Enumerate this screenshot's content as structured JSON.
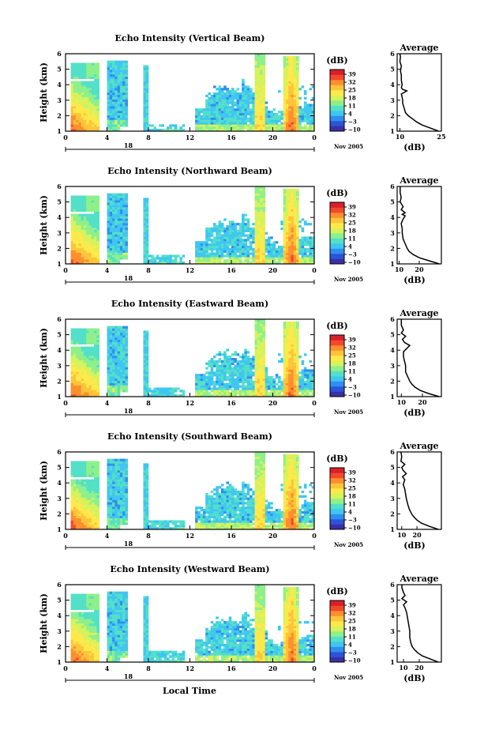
{
  "figure": {
    "x_axis_label": "Local Time",
    "date_label": "Nov 2005",
    "day_label": "18",
    "time_ticks": [
      "0",
      "4",
      "8",
      "12",
      "16",
      "20",
      "0"
    ],
    "height_ticks": [
      "1",
      "2",
      "3",
      "4",
      "5",
      "6"
    ],
    "y_axis_label": "Height (km)",
    "colorbar_unit": "(dB)",
    "colorbar_ticks": [
      "39",
      "32",
      "25",
      "18",
      "11",
      "4",
      "−3",
      "−10"
    ],
    "average_title": "Average",
    "average_xlabel": "(dB)",
    "colormap": [
      "#3b2fa6",
      "#2b54d8",
      "#2f8ff0",
      "#3fc6f2",
      "#53e0c8",
      "#8ef08a",
      "#d6f25c",
      "#ffe94a",
      "#ffc43a",
      "#ff8f2e",
      "#f4482c",
      "#d8202a"
    ]
  },
  "chart_data": [
    {
      "type": "heatmap",
      "title": "Echo Intensity (Vertical Beam)",
      "xlabel": "",
      "ylabel": "Height (km)",
      "xlim": [
        0,
        24
      ],
      "ylim": [
        1,
        6
      ],
      "clim": [
        -10,
        39
      ],
      "avg_profile": {
        "xlim": [
          9,
          25
        ],
        "xticks": [
          "10",
          "25"
        ],
        "height": [
          1.0,
          1.2,
          1.4,
          1.6,
          1.8,
          2.0,
          2.2,
          2.5,
          2.8,
          3.0,
          3.2,
          3.4,
          3.5,
          3.6,
          3.7,
          3.8,
          4.0,
          4.3,
          4.6,
          4.9,
          5.2,
          5.5,
          5.8,
          6.0
        ],
        "value": [
          24,
          21,
          18,
          16,
          14.5,
          13,
          12,
          11.5,
          11,
          11,
          10.8,
          10.5,
          11.5,
          12.5,
          11,
          10.5,
          10.8,
          10.5,
          10.5,
          10.2,
          10.5,
          10,
          10.2,
          10
        ]
      }
    },
    {
      "type": "heatmap",
      "title": "Echo Intensity (Northward Beam)",
      "xlabel": "",
      "ylabel": "Height (km)",
      "xlim": [
        0,
        24
      ],
      "ylim": [
        1,
        6
      ],
      "clim": [
        -10,
        39
      ],
      "avg_profile": {
        "xlim": [
          9,
          31
        ],
        "xticks": [
          "10",
          "20"
        ],
        "height": [
          1.0,
          1.2,
          1.4,
          1.6,
          1.8,
          2.0,
          2.3,
          2.6,
          3.0,
          3.3,
          3.6,
          3.9,
          4.1,
          4.2,
          4.3,
          4.5,
          4.7,
          5.0,
          5.3,
          5.6,
          6.0
        ],
        "value": [
          30,
          25,
          20,
          17,
          15,
          14,
          13,
          12,
          11.5,
          11.5,
          11,
          12,
          13,
          11.5,
          13,
          11,
          12,
          10.5,
          11,
          10.5,
          10.5
        ]
      }
    },
    {
      "type": "heatmap",
      "title": "Echo Intensity (Eastward Beam)",
      "xlabel": "",
      "ylabel": "Height (km)",
      "xlim": [
        0,
        24
      ],
      "ylim": [
        1,
        6
      ],
      "clim": [
        -10,
        39
      ],
      "avg_profile": {
        "xlim": [
          8,
          29
        ],
        "xticks": [
          "10",
          "20"
        ],
        "height": [
          1.0,
          1.2,
          1.4,
          1.6,
          1.8,
          2.0,
          2.3,
          2.6,
          3.0,
          3.3,
          3.6,
          3.9,
          4.1,
          4.3,
          4.5,
          4.7,
          4.9,
          5.1,
          5.3,
          5.6,
          6.0
        ],
        "value": [
          28,
          23,
          19,
          16.5,
          15,
          14,
          13,
          12,
          12,
          11.5,
          11,
          11,
          12.5,
          14,
          11.5,
          10.5,
          12,
          10,
          11,
          10,
          10
        ]
      }
    },
    {
      "type": "heatmap",
      "title": "Echo Intensity (Southward Beam)",
      "xlabel": "",
      "ylabel": "Height (km)",
      "xlim": [
        0,
        24
      ],
      "ylim": [
        1,
        6
      ],
      "clim": [
        -10,
        39
      ],
      "avg_profile": {
        "xlim": [
          7,
          36
        ],
        "xticks": [
          "10",
          "20"
        ],
        "height": [
          1.0,
          1.2,
          1.4,
          1.6,
          1.8,
          2.0,
          2.3,
          2.6,
          3.0,
          3.3,
          3.6,
          3.9,
          4.2,
          4.4,
          4.6,
          4.8,
          5.0,
          5.2,
          5.4,
          5.7,
          6.0
        ],
        "value": [
          34,
          28,
          23,
          20,
          18,
          16.5,
          15,
          14,
          13,
          12.5,
          12,
          11,
          12,
          10.5,
          13,
          11,
          10,
          12,
          9.5,
          10,
          9.5
        ]
      }
    },
    {
      "type": "heatmap",
      "title": "Echo Intensity (Westward Beam)",
      "xlabel": "Local Time",
      "ylabel": "Height (km)",
      "xlim": [
        0,
        24
      ],
      "ylim": [
        1,
        6
      ],
      "clim": [
        -10,
        39
      ],
      "avg_profile": {
        "xlim": [
          6,
          34
        ],
        "xticks": [
          "10",
          "20"
        ],
        "height": [
          1.0,
          1.2,
          1.4,
          1.6,
          1.8,
          2.0,
          2.3,
          2.6,
          3.0,
          3.3,
          3.6,
          3.9,
          4.2,
          4.5,
          4.7,
          4.9,
          5.1,
          5.3,
          5.5,
          5.8,
          6.0
        ],
        "value": [
          32,
          27,
          22,
          19,
          17,
          15.5,
          14.5,
          14,
          14,
          13.5,
          13,
          12.5,
          12,
          11,
          10,
          12,
          9,
          11,
          10,
          9,
          9
        ]
      }
    }
  ]
}
